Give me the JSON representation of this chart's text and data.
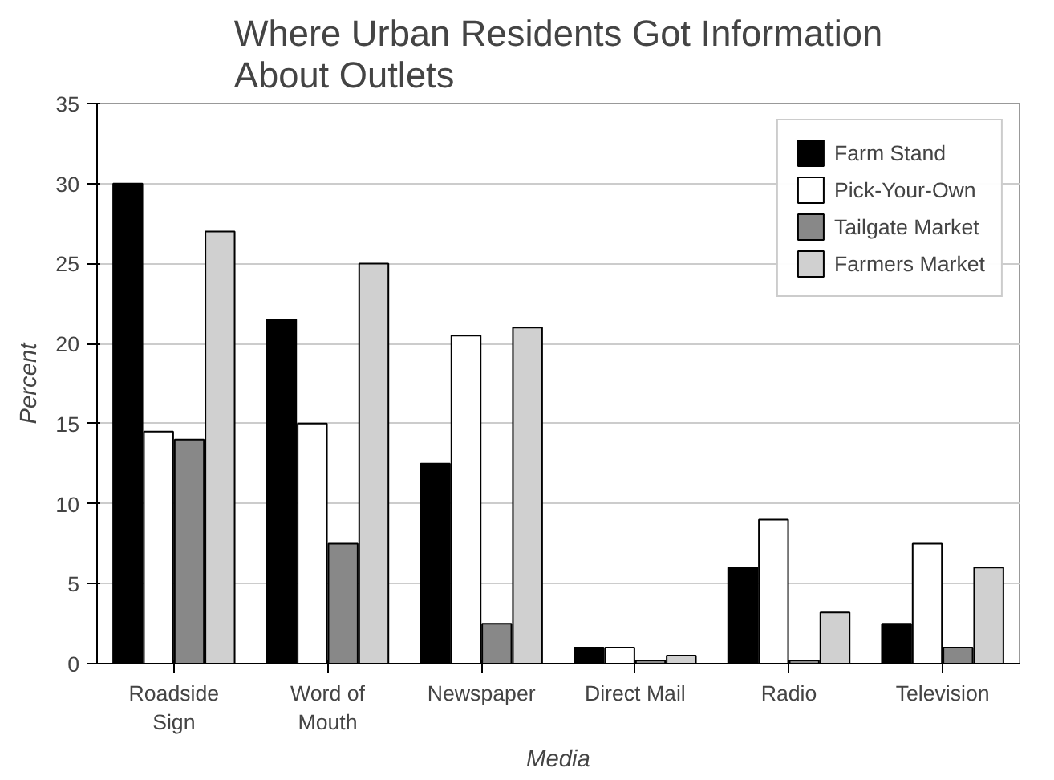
{
  "chart_data": {
    "type": "bar",
    "title": "Where Urban Residents Got Information\nAbout Outlets",
    "xlabel": "Media",
    "ylabel": "Percent",
    "categories": [
      "Roadside\nSign",
      "Word of\nMouth",
      "Newspaper",
      "Direct Mail",
      "Radio",
      "Television"
    ],
    "series": [
      {
        "name": "Farm Stand",
        "color": "#000000",
        "values": [
          30,
          21.5,
          12.5,
          1,
          6,
          2.5
        ]
      },
      {
        "name": "Pick-Your-Own",
        "color": "#ffffff",
        "values": [
          14.5,
          15,
          20.5,
          1,
          9,
          7.5
        ]
      },
      {
        "name": "Tailgate Market",
        "color": "#888888",
        "values": [
          14,
          7.5,
          2.5,
          0.2,
          0.2,
          1
        ]
      },
      {
        "name": "Farmers Market",
        "color": "#d0d0d0",
        "values": [
          27,
          25,
          21,
          0.5,
          3.2,
          6
        ]
      }
    ],
    "ylim": [
      0,
      35
    ],
    "yticks": [
      0,
      5,
      10,
      15,
      20,
      25,
      30,
      35
    ],
    "grid": "y",
    "legend": "top right"
  }
}
